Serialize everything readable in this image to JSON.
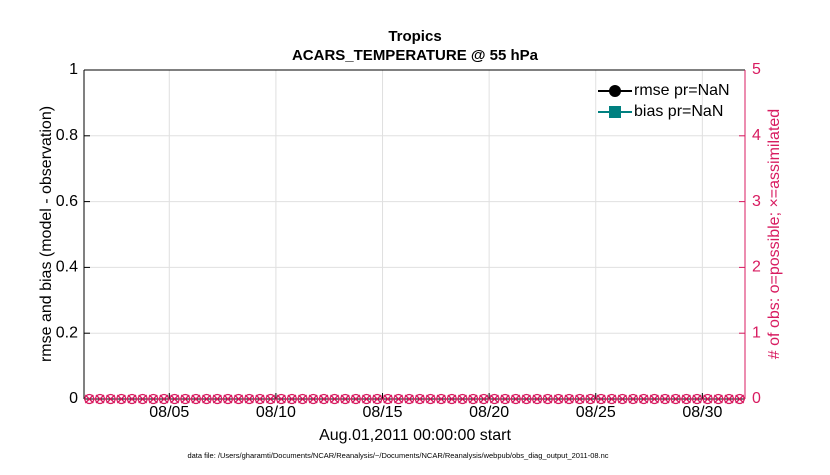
{
  "chart_data": {
    "type": "line",
    "title": "Tropics",
    "subtitle": "ACARS_TEMPERATURE @ 55 hPa",
    "x_label": "Aug.01,2011 00:00:00 start",
    "y_label": "rmse and bias (model - observation)",
    "y2_label": "# of obs: o=possible; ×=assimilated",
    "footnote": "data file: /Users/gharamti/Documents/NCAR/Reanalysis/~/Documents/NCAR/Reanalysis/webpub/obs_diag_output_2011-08.nc",
    "xlim": [
      1,
      32
    ],
    "xticks": [
      {
        "value": 5,
        "label": "08/05"
      },
      {
        "value": 10,
        "label": "08/10"
      },
      {
        "value": 15,
        "label": "08/15"
      },
      {
        "value": 20,
        "label": "08/20"
      },
      {
        "value": 25,
        "label": "08/25"
      },
      {
        "value": 30,
        "label": "08/30"
      }
    ],
    "ylim": [
      0,
      1
    ],
    "yticks": [
      0,
      0.2,
      0.4,
      0.6,
      0.8,
      1
    ],
    "y2lim": [
      0,
      5
    ],
    "y2ticks": [
      0,
      1,
      2,
      3,
      4,
      5
    ],
    "grid": true,
    "legend": "upper-right",
    "x": [
      1.25,
      1.75,
      2.25,
      2.75,
      3.25,
      3.75,
      4.25,
      4.75,
      5.25,
      5.75,
      6.25,
      6.75,
      7.25,
      7.75,
      8.25,
      8.75,
      9.25,
      9.75,
      10.25,
      10.75,
      11.25,
      11.75,
      12.25,
      12.75,
      13.25,
      13.75,
      14.25,
      14.75,
      15.25,
      15.75,
      16.25,
      16.75,
      17.25,
      17.75,
      18.25,
      18.75,
      19.25,
      19.75,
      20.25,
      20.75,
      21.25,
      21.75,
      22.25,
      22.75,
      23.25,
      23.75,
      24.25,
      24.75,
      25.25,
      25.75,
      26.25,
      26.75,
      27.25,
      27.75,
      28.25,
      28.75,
      29.25,
      29.75,
      30.25,
      30.75,
      31.25,
      31.75
    ],
    "series": [
      {
        "name": "rmse pr=NaN",
        "color": "#000000",
        "marker": "circle"
      },
      {
        "name": "bias pr=NaN",
        "color": "#008080",
        "marker": "square"
      },
      {
        "color": "#d81b60",
        "marker": "o",
        "axis": "y2",
        "values": [
          0,
          0,
          0,
          0,
          0,
          0,
          0,
          0,
          0,
          0,
          0,
          0,
          0,
          0,
          0,
          0,
          0,
          0,
          0,
          0,
          0,
          0,
          0,
          0,
          0,
          0,
          0,
          0,
          0,
          0,
          0,
          0,
          0,
          0,
          0,
          0,
          0,
          0,
          0,
          0,
          0,
          0,
          0,
          0,
          0,
          0,
          0,
          0,
          0,
          0,
          0,
          0,
          0,
          0,
          0,
          0,
          0,
          0,
          0,
          0,
          0,
          0
        ]
      },
      {
        "color": "#d81b60",
        "marker": "x",
        "axis": "y2",
        "values": [
          0,
          0,
          0,
          0,
          0,
          0,
          0,
          0,
          0,
          0,
          0,
          0,
          0,
          0,
          0,
          0,
          0,
          0,
          0,
          0,
          0,
          0,
          0,
          0,
          0,
          0,
          0,
          0,
          0,
          0,
          0,
          0,
          0,
          0,
          0,
          0,
          0,
          0,
          0,
          0,
          0,
          0,
          0,
          0,
          0,
          0,
          0,
          0,
          0,
          0,
          0,
          0,
          0,
          0,
          0,
          0,
          0,
          0,
          0,
          0,
          0,
          0
        ]
      }
    ]
  }
}
